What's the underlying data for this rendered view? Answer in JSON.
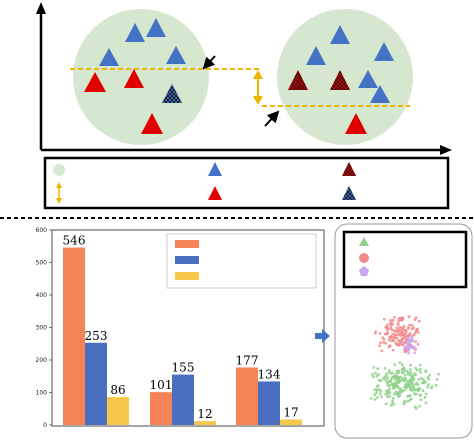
{
  "colors": {
    "circle_fill": "#d5e8cf",
    "blue_triangle": "#4472c4",
    "red_triangle": "#e00000",
    "dash_line": "#f0b400",
    "bar_orange": "#f58357",
    "bar_blue": "#4a6fc0",
    "bar_yellow": "#f5c84c",
    "scatter_green": "#8fd18b",
    "scatter_pink": "#f28b8b",
    "scatter_purple": "#c8a6f0"
  },
  "icons": {
    "legend_circle": "light-green-circle-icon",
    "legend_arrow": "double-headed-arrow-icon",
    "legend_blue": "blue-triangle-icon",
    "legend_red": "red-triangle-icon",
    "legend_red_hatched": "red-hatched-triangle-icon",
    "legend_blue_hatched": "blue-hatched-triangle-icon",
    "scatter_legend": [
      "green-triangle-icon",
      "pink-circle-icon",
      "purple-pentagon-icon"
    ]
  },
  "chart_data": {
    "type": "bar",
    "categories": [
      "",
      "",
      ""
    ],
    "series": [
      {
        "values": [
          546,
          101,
          177
        ]
      },
      {
        "values": [
          253,
          155,
          134
        ]
      },
      {
        "values": [
          86,
          12,
          17
        ]
      }
    ],
    "data_labels": [
      [
        "546",
        "101",
        "177"
      ],
      [
        "253",
        "155",
        "134"
      ],
      [
        "86",
        "12",
        "17"
      ]
    ],
    "yticks": [
      "0",
      "100",
      "200",
      "300",
      "400",
      "500",
      "600"
    ],
    "ylim": [
      0,
      600
    ],
    "legend_entries": 3,
    "legend_position": "top-right",
    "grid": false
  }
}
